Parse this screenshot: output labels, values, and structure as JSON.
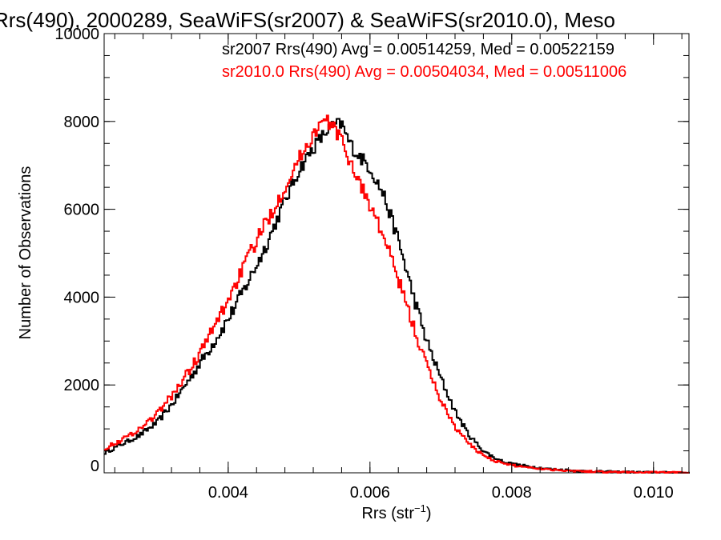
{
  "chart_data": {
    "type": "line",
    "title": "Rrs(490), 2000289, SeaWiFS(sr2007) & SeaWiFS(sr2010.0), Meso",
    "xlabel": "Rrs (str",
    "xlabel_sup": "−1",
    "xlabel_close": ")",
    "ylabel": "Number of Observations",
    "xlim": [
      0.00225,
      0.0105
    ],
    "ylim": [
      0,
      10000
    ],
    "x_ticks": [
      0.004,
      0.006,
      0.008,
      0.01
    ],
    "x_tick_labels": [
      "0.004",
      "0.006",
      "0.008",
      "0.010"
    ],
    "y_ticks": [
      0,
      2000,
      4000,
      6000,
      8000,
      10000
    ],
    "y_tick_labels": [
      "0",
      "2000",
      "4000",
      "6000",
      "8000",
      "10000"
    ],
    "grid": false,
    "annotations": [
      {
        "text": "sr2007 Rrs(490) Avg = 0.00514259, Med = 0.00522159",
        "color": "#000000"
      },
      {
        "text": "sr2010.0 Rrs(490) Avg = 0.00504034, Med = 0.00511006",
        "color": "#ff0000"
      }
    ],
    "series": [
      {
        "color": "#000000",
        "style": "step",
        "points": [
          [
            0.00225,
            450
          ],
          [
            0.0025,
            650
          ],
          [
            0.00275,
            850
          ],
          [
            0.003,
            1150
          ],
          [
            0.00325,
            1650
          ],
          [
            0.0035,
            2250
          ],
          [
            0.00375,
            2850
          ],
          [
            0.004,
            3500
          ],
          [
            0.00425,
            4250
          ],
          [
            0.0045,
            5050
          ],
          [
            0.00475,
            6000
          ],
          [
            0.005,
            6900
          ],
          [
            0.0052,
            7400
          ],
          [
            0.0054,
            7800
          ],
          [
            0.0055,
            7900
          ],
          [
            0.0056,
            7950
          ],
          [
            0.0057,
            7550
          ],
          [
            0.0058,
            7300
          ],
          [
            0.006,
            6950
          ],
          [
            0.0062,
            6300
          ],
          [
            0.0064,
            5300
          ],
          [
            0.0066,
            4100
          ],
          [
            0.0068,
            3000
          ],
          [
            0.007,
            2150
          ],
          [
            0.0072,
            1400
          ],
          [
            0.0074,
            850
          ],
          [
            0.0076,
            500
          ],
          [
            0.0078,
            300
          ],
          [
            0.008,
            200
          ],
          [
            0.0085,
            90
          ],
          [
            0.009,
            40
          ],
          [
            0.0095,
            20
          ],
          [
            0.01,
            10
          ],
          [
            0.0105,
            5
          ]
        ]
      },
      {
        "color": "#ff0000",
        "style": "step",
        "points": [
          [
            0.00225,
            550
          ],
          [
            0.0025,
            750
          ],
          [
            0.00275,
            1000
          ],
          [
            0.003,
            1350
          ],
          [
            0.00325,
            1850
          ],
          [
            0.0035,
            2450
          ],
          [
            0.00375,
            3150
          ],
          [
            0.004,
            3950
          ],
          [
            0.00425,
            4800
          ],
          [
            0.0045,
            5600
          ],
          [
            0.00475,
            6350
          ],
          [
            0.005,
            7150
          ],
          [
            0.0052,
            7700
          ],
          [
            0.0053,
            7950
          ],
          [
            0.0054,
            8000
          ],
          [
            0.0055,
            7850
          ],
          [
            0.0056,
            7550
          ],
          [
            0.0058,
            6800
          ],
          [
            0.006,
            6100
          ],
          [
            0.0062,
            5350
          ],
          [
            0.0064,
            4400
          ],
          [
            0.0066,
            3400
          ],
          [
            0.0068,
            2450
          ],
          [
            0.007,
            1650
          ],
          [
            0.0072,
            1050
          ],
          [
            0.0074,
            650
          ],
          [
            0.0076,
            400
          ],
          [
            0.0078,
            250
          ],
          [
            0.008,
            170
          ],
          [
            0.0085,
            80
          ],
          [
            0.009,
            35
          ],
          [
            0.0095,
            15
          ],
          [
            0.01,
            8
          ],
          [
            0.0105,
            4
          ]
        ]
      }
    ]
  }
}
